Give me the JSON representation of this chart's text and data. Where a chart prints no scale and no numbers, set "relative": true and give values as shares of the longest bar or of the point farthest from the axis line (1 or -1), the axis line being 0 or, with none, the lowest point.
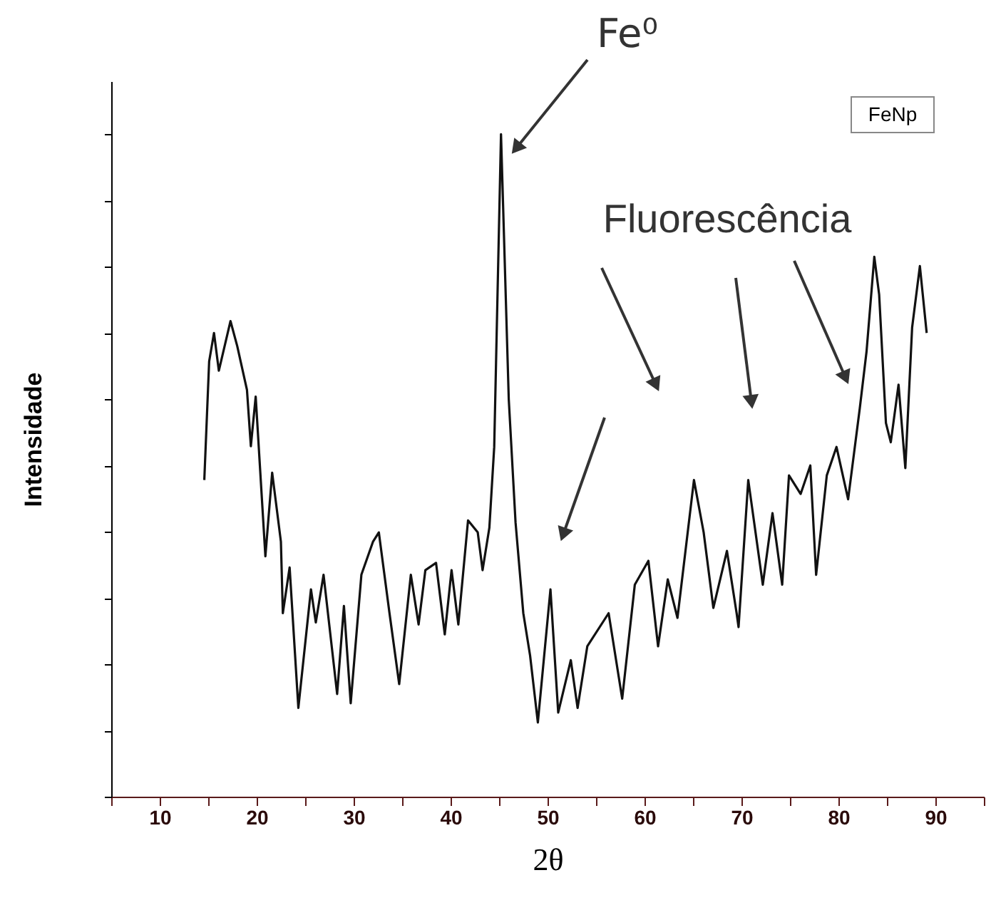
{
  "chart_data": {
    "type": "line",
    "relative": true,
    "xlabel": "2θ",
    "ylabel": "Intensidade",
    "xlim": [
      5,
      95
    ],
    "xticks": [
      {
        "value": 5,
        "label": null
      },
      10,
      {
        "value": 15,
        "label": null
      },
      20,
      {
        "value": 25,
        "label": null
      },
      30,
      {
        "value": 35,
        "label": null
      },
      40,
      {
        "value": 45,
        "label": null
      },
      50,
      {
        "value": 55,
        "label": null
      },
      60,
      {
        "value": 65,
        "label": null
      },
      70,
      {
        "value": 75,
        "label": null
      },
      80,
      {
        "value": 85,
        "label": null
      },
      90,
      {
        "value": 95,
        "label": null
      }
    ],
    "grid": false,
    "marker": "none",
    "line_style": "solid",
    "x": [
      14.6,
      15.1,
      15.6,
      16.1,
      17.3,
      18.0,
      19.0,
      19.4,
      19.9,
      20.9,
      21.6,
      22.5,
      22.7,
      23.4,
      24.3,
      25.6,
      26.1,
      26.9,
      28.3,
      29.0,
      29.7,
      30.8,
      32.0,
      32.6,
      33.7,
      34.7,
      35.9,
      36.7,
      37.4,
      38.5,
      39.4,
      40.1,
      40.8,
      41.8,
      42.8,
      43.3,
      44.0,
      44.5,
      45.2,
      46.0,
      46.7,
      47.5,
      48.2,
      49.0,
      50.3,
      51.1,
      52.4,
      53.1,
      54.1,
      56.3,
      57.7,
      59.0,
      60.4,
      61.4,
      62.4,
      63.4,
      65.1,
      66.1,
      67.1,
      68.5,
      69.5,
      69.7,
      70.7,
      72.2,
      73.2,
      74.2,
      74.9,
      76.1,
      77.1,
      77.7,
      78.8,
      79.8,
      81.0,
      82.2,
      82.9,
      83.7,
      84.2,
      84.9,
      85.4,
      86.2,
      86.9,
      87.6,
      88.4,
      89.1
    ],
    "series": [
      {
        "color": "#111111",
        "values": [
          0.478,
          0.657,
          0.7,
          0.643,
          0.718,
          0.68,
          0.614,
          0.529,
          0.604,
          0.363,
          0.489,
          0.385,
          0.277,
          0.346,
          0.134,
          0.313,
          0.263,
          0.335,
          0.155,
          0.288,
          0.141,
          0.335,
          0.385,
          0.399,
          0.277,
          0.17,
          0.335,
          0.26,
          0.342,
          0.353,
          0.245,
          0.342,
          0.26,
          0.417,
          0.399,
          0.342,
          0.406,
          0.528,
          1.0,
          0.6,
          0.414,
          0.277,
          0.213,
          0.112,
          0.313,
          0.127,
          0.206,
          0.134,
          0.227,
          0.277,
          0.148,
          0.32,
          0.356,
          0.227,
          0.328,
          0.27,
          0.478,
          0.399,
          0.285,
          0.371,
          0.277,
          0.256,
          0.478,
          0.32,
          0.428,
          0.32,
          0.485,
          0.457,
          0.5,
          0.335,
          0.485,
          0.528,
          0.449,
          0.586,
          0.672,
          0.815,
          0.758,
          0.564,
          0.535,
          0.622,
          0.496,
          0.708,
          0.801,
          0.7
        ]
      }
    ],
    "annotations": [
      "Fe⁰",
      "Fluorescência",
      "FeNp"
    ]
  }
}
